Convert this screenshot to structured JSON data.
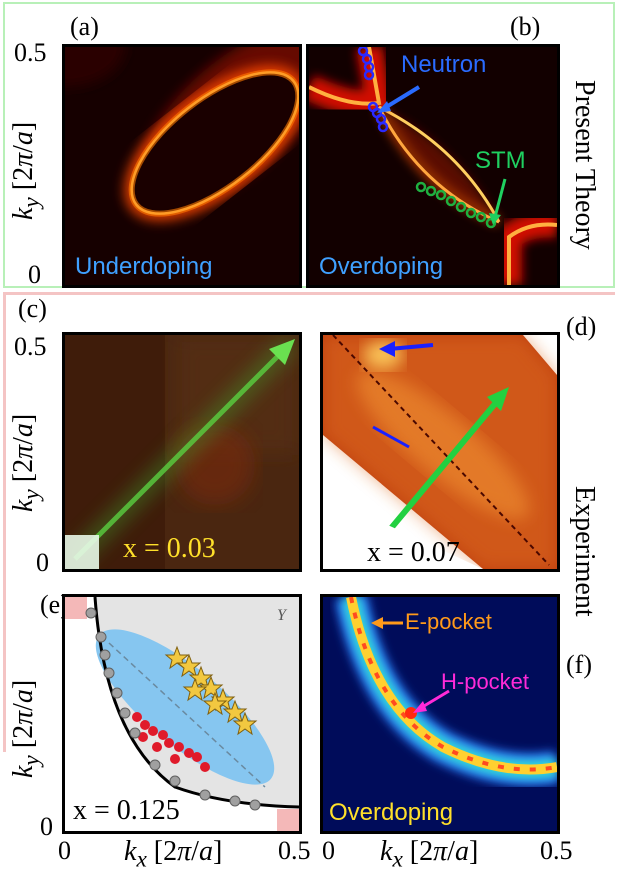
{
  "panels": {
    "a": {
      "label": "(a)",
      "caption": "Underdoping"
    },
    "b": {
      "label": "(b)",
      "caption": "Overdoping",
      "neutron": "Neutron",
      "stm": "STM"
    },
    "c": {
      "label": "(c)",
      "doping": "x = 0.03"
    },
    "d": {
      "label": "(d)",
      "doping": "x = 0.07"
    },
    "e": {
      "label": "(e)",
      "doping": "x = 0.125",
      "corner": "Y"
    },
    "f": {
      "label": "(f)",
      "caption": "Overdoping",
      "e_pocket": "E-pocket",
      "h_pocket": "H-pocket"
    }
  },
  "side_labels": {
    "top": "Present Theory",
    "bottom": "Experiment"
  },
  "axes": {
    "ky_label": "k_y [2π/a]",
    "kx_label": "k_x [2π/a]",
    "tick_0": "0",
    "tick_05": "0.5"
  },
  "colors": {
    "underdoping": "#3fa0ff",
    "neutron": "#2a6bff",
    "stm": "#1fd060",
    "doping_yellow": "#ffe02a",
    "e_pocket": "#ff9a1a",
    "h_pocket": "#ff2ad8",
    "frame_top": "#b8f0b8",
    "frame_bottom": "#f4c4c4"
  }
}
